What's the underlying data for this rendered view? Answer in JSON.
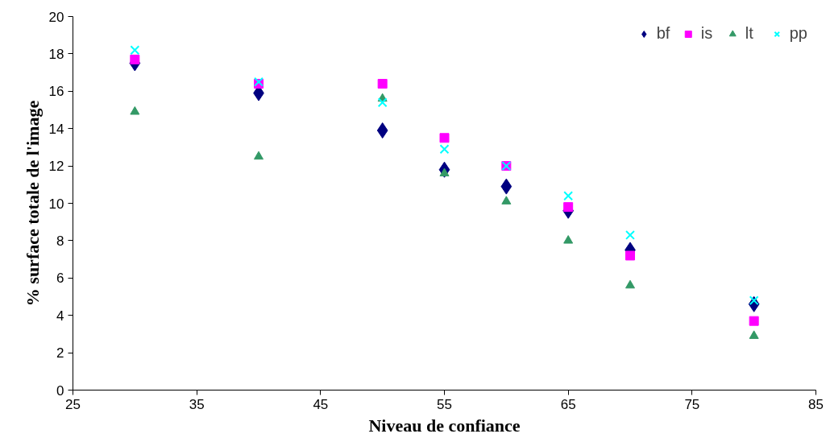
{
  "chart_data": {
    "type": "scatter",
    "xlabel": "Niveau de confiance",
    "ylabel": "% surface totale de l'image",
    "x": [
      30,
      40,
      50,
      55,
      60,
      65,
      70,
      80
    ],
    "xlim": [
      25,
      85
    ],
    "xticks": [
      25,
      35,
      45,
      55,
      65,
      75,
      85
    ],
    "ylim": [
      0,
      20
    ],
    "yticks": [
      0,
      2,
      4,
      6,
      8,
      10,
      12,
      14,
      16,
      18,
      20
    ],
    "grid": false,
    "legend": "top right",
    "series": [
      {
        "name": "bf",
        "color": "#000080",
        "marker": "diamond",
        "values": [
          17.5,
          15.9,
          13.9,
          11.8,
          10.9,
          9.6,
          7.5,
          4.6
        ]
      },
      {
        "name": "is",
        "color": "#ff00ff",
        "marker": "square",
        "values": [
          17.7,
          16.4,
          16.4,
          13.5,
          12.0,
          9.8,
          7.2,
          3.7
        ]
      },
      {
        "name": "lt",
        "color": "#339966",
        "marker": "triangle",
        "values": [
          14.9,
          12.5,
          15.6,
          11.6,
          10.1,
          8.0,
          5.6,
          2.9
        ]
      },
      {
        "name": "pp",
        "color": "#00ffff",
        "marker": "cross",
        "values": [
          18.2,
          16.5,
          15.4,
          12.9,
          12.0,
          10.4,
          8.3,
          4.8
        ]
      }
    ]
  }
}
